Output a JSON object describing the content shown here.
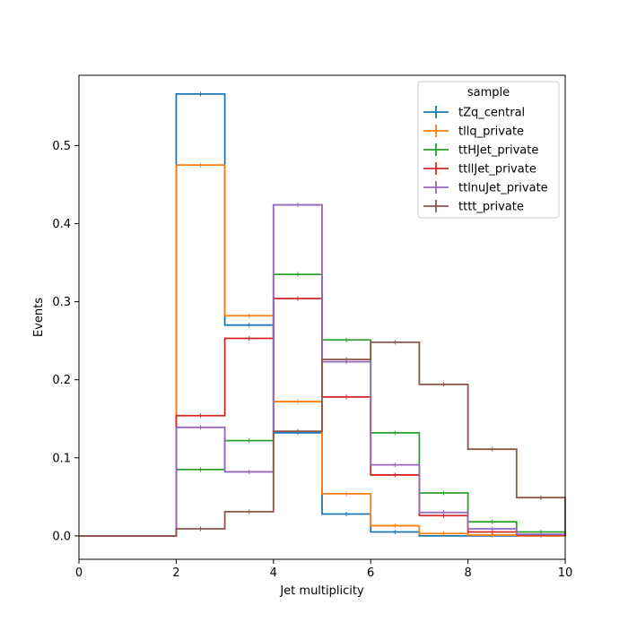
{
  "chart_data": {
    "type": "histogram-step",
    "title": "",
    "xlabel": "Jet multiplicity",
    "ylabel": "Events",
    "xlim": [
      0,
      10
    ],
    "ylim": [
      -0.03,
      0.59
    ],
    "x_ticks": [
      0,
      2,
      4,
      6,
      8,
      10
    ],
    "x_tick_labels": [
      "0",
      "2",
      "4",
      "6",
      "8",
      "10"
    ],
    "y_ticks": [
      0.0,
      0.1,
      0.2,
      0.3,
      0.4,
      0.5
    ],
    "y_tick_labels": [
      "0.0",
      "0.1",
      "0.2",
      "0.3",
      "0.4",
      "0.5"
    ],
    "bin_edges": [
      0,
      1,
      2,
      3,
      4,
      5,
      6,
      7,
      8,
      9,
      10
    ],
    "legend": {
      "title": "sample",
      "placement": "top-right"
    },
    "series": [
      {
        "name": "tZq_central",
        "color": "#1f77b4",
        "values": [
          0,
          0,
          0.566,
          0.27,
          0.132,
          0.028,
          0.005,
          0.0,
          0.0,
          0.0
        ]
      },
      {
        "name": "tllq_private",
        "color": "#ff7f0e",
        "values": [
          0,
          0,
          0.475,
          0.282,
          0.172,
          0.054,
          0.013,
          0.003,
          0.001,
          0.0
        ]
      },
      {
        "name": "ttHJet_private",
        "color": "#2ca02c",
        "values": [
          0,
          0,
          0.085,
          0.122,
          0.335,
          0.251,
          0.132,
          0.055,
          0.018,
          0.005
        ]
      },
      {
        "name": "ttllJet_private",
        "color": "#d62728",
        "values": [
          0,
          0,
          0.154,
          0.253,
          0.304,
          0.178,
          0.078,
          0.026,
          0.005,
          0.001
        ]
      },
      {
        "name": "ttlnuJet_private",
        "color": "#9467bd",
        "values": [
          0,
          0,
          0.139,
          0.082,
          0.424,
          0.223,
          0.091,
          0.03,
          0.009,
          0.002
        ]
      },
      {
        "name": "tttt_private",
        "color": "#8c564b",
        "values": [
          0,
          0,
          0.009,
          0.031,
          0.134,
          0.226,
          0.248,
          0.194,
          0.111,
          0.049
        ]
      }
    ]
  }
}
